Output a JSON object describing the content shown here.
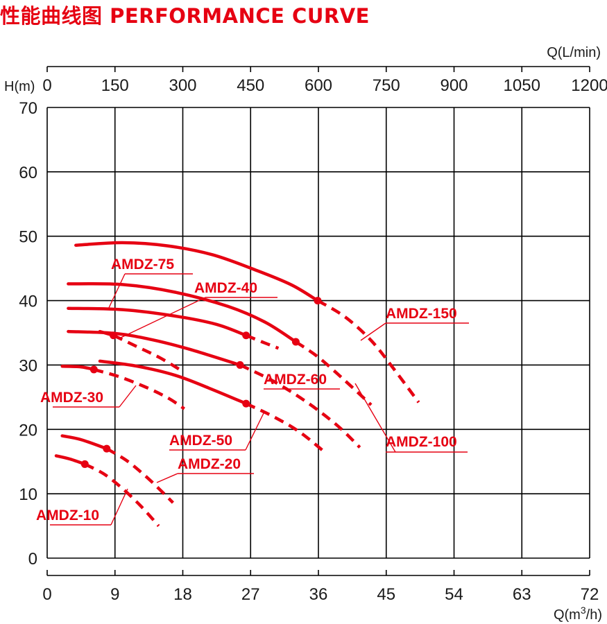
{
  "chart_data": {
    "type": "line",
    "title": "性能曲线图  PERFORMANCE CURVE",
    "ylabel": "H(m)",
    "xlabel_top": "Q(L/min)",
    "xlabel_bottom": "Q(m³/h)",
    "xlim": [
      0,
      72
    ],
    "ylim": [
      0,
      70
    ],
    "x_ticks_bottom": [
      "0",
      "9",
      "18",
      "27",
      "36",
      "45",
      "54",
      "63",
      "72"
    ],
    "x_ticks_top": [
      "0",
      "150",
      "300",
      "450",
      "600",
      "750",
      "900",
      "1050",
      "1200"
    ],
    "y_ticks": [
      "0",
      "10",
      "20",
      "30",
      "40",
      "50",
      "60",
      "70"
    ],
    "grid": true,
    "accent_color": "#e60012",
    "series": [
      {
        "name": "AMDZ-10",
        "solid": [
          [
            1.2,
            15.9
          ],
          [
            3.0,
            15.4
          ],
          [
            5.0,
            14.6
          ]
        ],
        "dashed": [
          [
            5.0,
            14.6
          ],
          [
            7.5,
            13.1
          ],
          [
            10.0,
            10.8
          ],
          [
            12.5,
            8.0
          ],
          [
            14.8,
            5.0
          ]
        ]
      },
      {
        "name": "AMDZ-20",
        "solid": [
          [
            2.0,
            19.0
          ],
          [
            4.5,
            18.4
          ],
          [
            7.9,
            17.0
          ]
        ],
        "dashed": [
          [
            7.9,
            17.0
          ],
          [
            10.5,
            15.2
          ],
          [
            13.0,
            12.8
          ],
          [
            15.0,
            10.6
          ],
          [
            16.7,
            8.6
          ]
        ]
      },
      {
        "name": "AMDZ-30",
        "solid": [
          [
            2.0,
            29.8
          ],
          [
            4.5,
            29.7
          ],
          [
            6.2,
            29.3
          ]
        ],
        "dashed": [
          [
            6.2,
            29.3
          ],
          [
            9.5,
            28.2
          ],
          [
            13.0,
            26.6
          ],
          [
            16.0,
            24.9
          ],
          [
            18.2,
            23.2
          ]
        ]
      },
      {
        "name": "AMDZ-50",
        "solid": [
          [
            7.0,
            30.6
          ],
          [
            12.0,
            29.8
          ],
          [
            17.0,
            28.4
          ],
          [
            21.5,
            26.4
          ],
          [
            26.4,
            24.0
          ]
        ],
        "dashed": [
          [
            26.4,
            24.0
          ],
          [
            30.0,
            22.0
          ],
          [
            33.5,
            19.6
          ],
          [
            36.8,
            16.5
          ]
        ]
      },
      {
        "name": "AMDZ-40",
        "solid": [
          [
            7.0,
            35.2
          ],
          [
            8.8,
            34.6
          ]
        ],
        "dashed": [
          [
            8.8,
            34.6
          ],
          [
            12.0,
            32.8
          ],
          [
            15.0,
            31.1
          ],
          [
            18.0,
            29.0
          ]
        ]
      },
      {
        "name": "AMDZ-60",
        "solid": [
          [
            2.8,
            35.2
          ],
          [
            9.0,
            34.9
          ],
          [
            14.0,
            33.9
          ],
          [
            19.0,
            32.4
          ],
          [
            25.6,
            30.0
          ]
        ],
        "dashed": [
          [
            25.6,
            30.0
          ],
          [
            30.0,
            27.5
          ],
          [
            34.5,
            24.2
          ],
          [
            38.5,
            20.6
          ],
          [
            41.5,
            17.2
          ]
        ]
      },
      {
        "name": "AMDZ-75",
        "solid": [
          [
            2.8,
            38.8
          ],
          [
            10.0,
            38.6
          ],
          [
            17.0,
            37.6
          ],
          [
            22.5,
            36.3
          ],
          [
            26.4,
            34.6
          ]
        ],
        "dashed": [
          [
            26.4,
            34.6
          ],
          [
            28.5,
            33.6
          ],
          [
            30.7,
            32.6
          ]
        ]
      },
      {
        "name": "AMDZ-100",
        "solid": [
          [
            2.8,
            42.6
          ],
          [
            10.0,
            42.5
          ],
          [
            17.0,
            41.3
          ],
          [
            24.0,
            39.1
          ],
          [
            29.0,
            36.6
          ],
          [
            33.0,
            33.6
          ]
        ],
        "dashed": [
          [
            33.0,
            33.6
          ],
          [
            36.0,
            31.2
          ],
          [
            39.5,
            27.6
          ],
          [
            43.0,
            23.8
          ]
        ]
      },
      {
        "name": "AMDZ-150",
        "solid": [
          [
            3.8,
            48.6
          ],
          [
            10.0,
            49.0
          ],
          [
            16.0,
            48.5
          ],
          [
            22.0,
            47.1
          ],
          [
            28.0,
            44.6
          ],
          [
            32.5,
            42.4
          ],
          [
            35.9,
            40.0
          ]
        ],
        "dashed": [
          [
            35.9,
            40.0
          ],
          [
            39.5,
            37.5
          ],
          [
            43.0,
            33.8
          ],
          [
            46.0,
            29.4
          ],
          [
            49.3,
            24.2
          ]
        ]
      }
    ],
    "labels": [
      {
        "series": "AMDZ-10",
        "text": "AMDZ-10"
      },
      {
        "series": "AMDZ-20",
        "text": "AMDZ-20"
      },
      {
        "series": "AMDZ-30",
        "text": "AMDZ-30"
      },
      {
        "series": "AMDZ-40",
        "text": "AMDZ-40"
      },
      {
        "series": "AMDZ-50",
        "text": "AMDZ-50"
      },
      {
        "series": "AMDZ-60",
        "text": "AMDZ-60"
      },
      {
        "series": "AMDZ-75",
        "text": "AMDZ-75"
      },
      {
        "series": "AMDZ-100",
        "text": "AMDZ-100"
      },
      {
        "series": "AMDZ-150",
        "text": "AMDZ-150"
      }
    ]
  }
}
